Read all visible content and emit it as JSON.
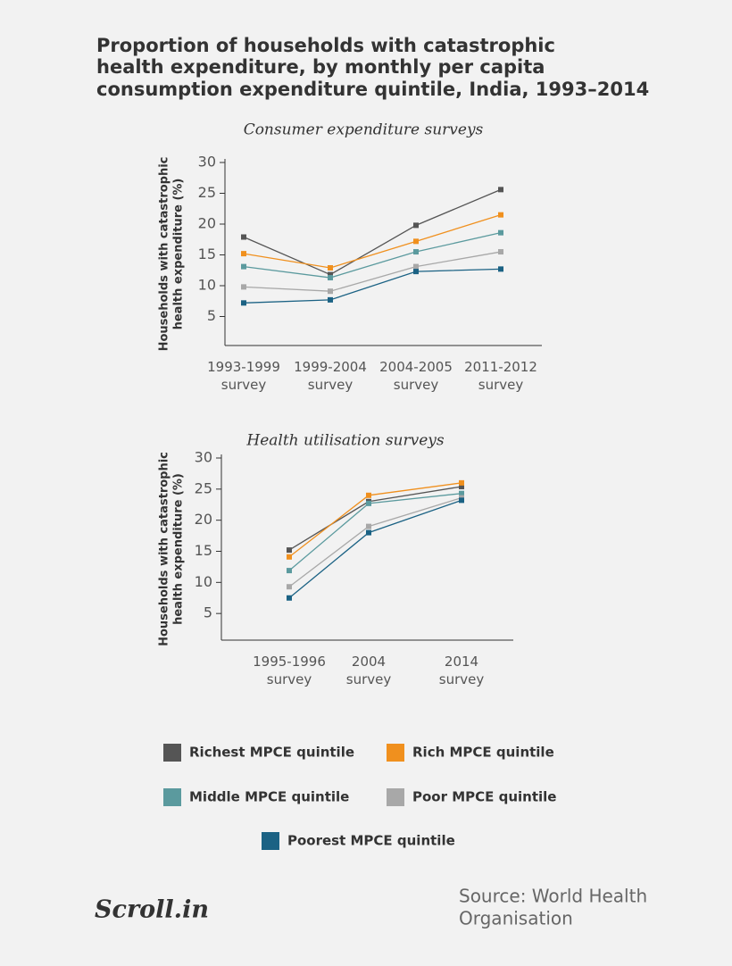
{
  "title": [
    "Proportion of households with catastrophic",
    "health expenditure, by monthly per capita",
    "consumption expenditure quintile, India, 1993–2014"
  ],
  "source": [
    "Source: World Health",
    "Organisation"
  ],
  "logo": "Scroll.in",
  "chart_data": [
    {
      "type": "line",
      "title": "Consumer expenditure surveys",
      "y_label": [
        "Households with catastrophic",
        "health expenditure (%)"
      ],
      "categories": [
        "1993-1999 survey",
        "1999-2004 survey",
        "2004-2005 survey",
        "2011-2012 survey"
      ],
      "ylim": [
        0,
        30
      ],
      "yticks": [
        5,
        10,
        15,
        20,
        25,
        30
      ],
      "series": [
        {
          "name": "Richest MPCE quintile",
          "color": "#555555",
          "values": [
            17.9,
            11.8,
            19.8,
            25.6
          ]
        },
        {
          "name": "Rich MPCE quintile",
          "color": "#f0901e",
          "values": [
            15.2,
            12.9,
            17.2,
            21.5
          ]
        },
        {
          "name": "Middle MPCE quintile",
          "color": "#5b9a9e",
          "values": [
            13.1,
            11.3,
            15.5,
            18.6
          ]
        },
        {
          "name": "Poor MPCE quintile",
          "color": "#a8a8a8",
          "values": [
            9.8,
            9.1,
            13.1,
            15.5
          ]
        },
        {
          "name": "Poorest MPCE quintile",
          "color": "#1b6284",
          "values": [
            7.2,
            7.7,
            12.3,
            12.7
          ]
        }
      ]
    },
    {
      "type": "line",
      "title": "Health utilisation surveys",
      "y_label": [
        "Households with catastrophic",
        "health expenditure (%)"
      ],
      "categories": [
        "1995-1996 survey",
        "2004 survey",
        "2014 survey"
      ],
      "ylim": [
        0,
        30
      ],
      "yticks": [
        5,
        10,
        15,
        20,
        25,
        30
      ],
      "series": [
        {
          "color": "#555555",
          "values": [
            15.2,
            23.0,
            25.4
          ]
        },
        {
          "color": "#f0901e",
          "values": [
            14.1,
            24.0,
            26.0
          ]
        },
        {
          "color": "#5b9a9e",
          "values": [
            11.9,
            22.7,
            24.3
          ]
        },
        {
          "color": "#a8a8a8",
          "values": [
            9.3,
            19.0,
            23.6
          ]
        },
        {
          "color": "#1b6284",
          "values": [
            7.5,
            18.0,
            23.2
          ]
        }
      ]
    }
  ]
}
